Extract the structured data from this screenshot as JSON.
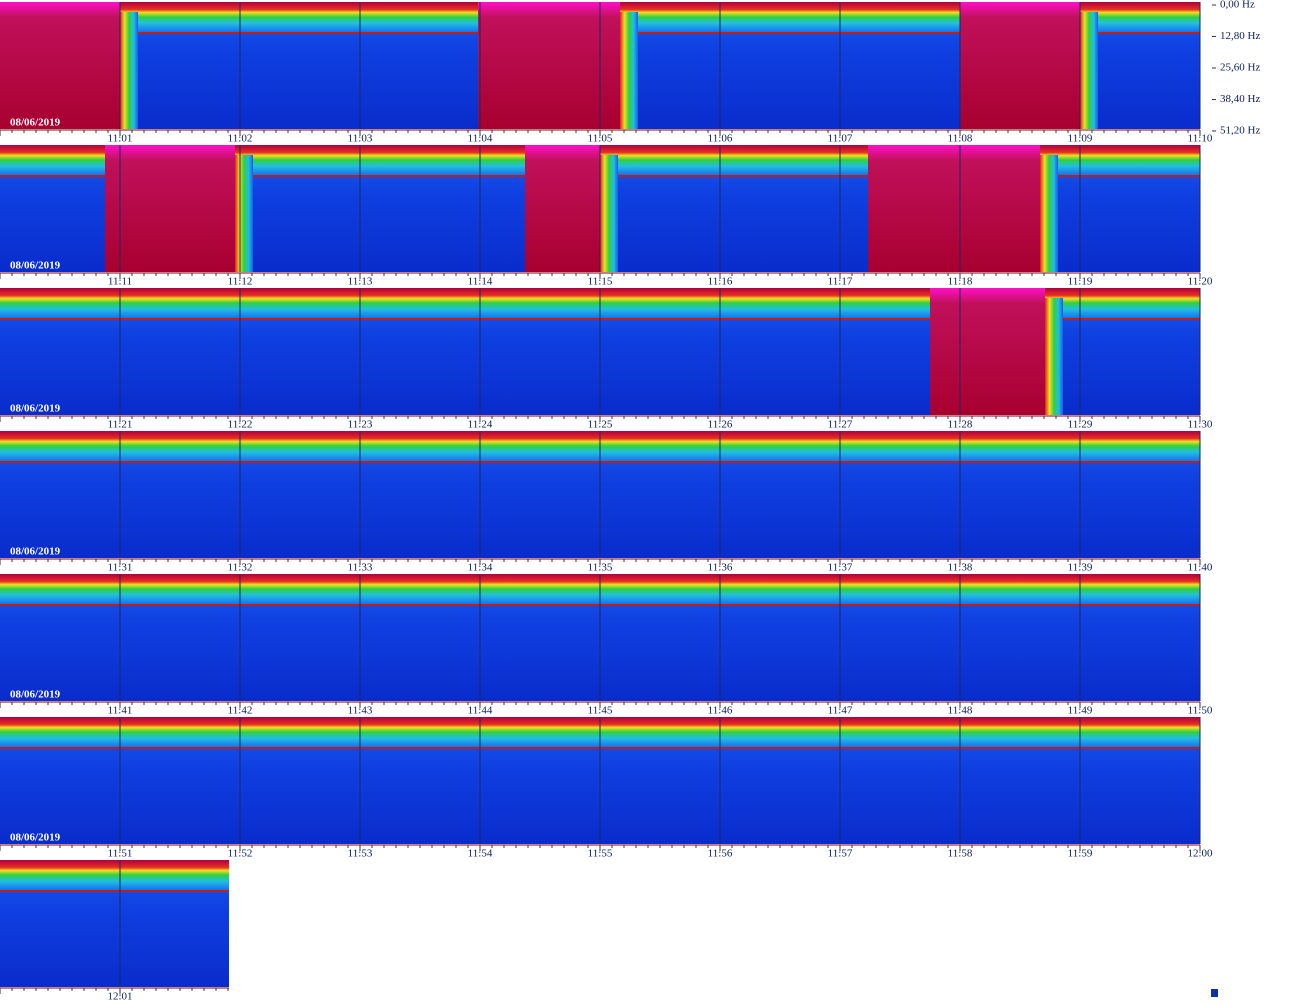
{
  "frequency_axis": {
    "labels": [
      "0,00 Hz",
      "12,80 Hz",
      "25,60 Hz",
      "38,40 Hz",
      "51,20 Hz"
    ]
  },
  "rows": [
    {
      "date": "08/06/2019",
      "times": [
        "11:01",
        "11:02",
        "11:03",
        "11:04",
        "11:05",
        "11:06",
        "11:07",
        "11:08",
        "11:09",
        "11:10"
      ]
    },
    {
      "date": "08/06/2019",
      "times": [
        "11:11",
        "11:12",
        "11:13",
        "11:14",
        "11:15",
        "11:16",
        "11:17",
        "11:18",
        "11:19",
        "11:20"
      ]
    },
    {
      "date": "08/06/2019",
      "times": [
        "11:21",
        "11:22",
        "11:23",
        "11:24",
        "11:25",
        "11:26",
        "11:27",
        "11:28",
        "11:29",
        "11:30"
      ]
    },
    {
      "date": "08/06/2019",
      "times": [
        "11:31",
        "11:32",
        "11:33",
        "11:34",
        "11:35",
        "11:36",
        "11:37",
        "11:38",
        "11:39",
        "11:40"
      ]
    },
    {
      "date": "08/06/2019",
      "times": [
        "11:41",
        "11:42",
        "11:43",
        "11:44",
        "11:45",
        "11:46",
        "11:47",
        "11:48",
        "11:49",
        "11:50"
      ]
    },
    {
      "date": "08/06/2019",
      "times": [
        "11:51",
        "11:52",
        "11:53",
        "11:54",
        "11:55",
        "11:56",
        "11:57",
        "11:58",
        "11:59",
        "12:00"
      ]
    },
    {
      "times": [
        "12:01"
      ]
    }
  ]
}
